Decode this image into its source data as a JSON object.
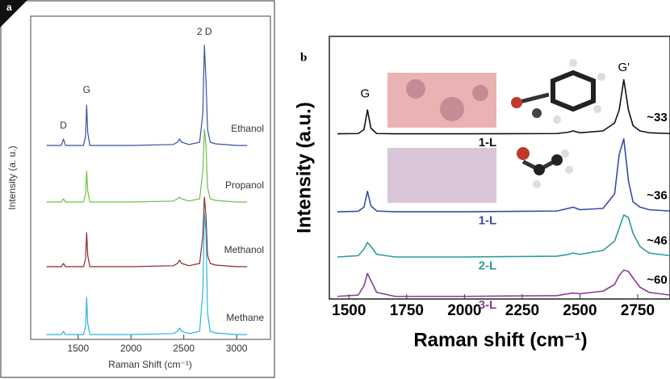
{
  "chart_data": [
    {
      "type": "line",
      "panel": "a",
      "x_label": "Raman Shift (cm⁻¹)",
      "y_label": "Intensity (a. u.)",
      "annotations": [
        "D",
        "G",
        "2 D"
      ],
      "xlim": [
        1050,
        3320
      ],
      "xticks": [
        1500,
        2000,
        2500,
        3000
      ],
      "ylim": [
        0,
        100
      ],
      "x": [
        1200,
        1340,
        1360,
        1380,
        1550,
        1570,
        1580,
        1590,
        1610,
        1700,
        2000,
        2400,
        2440,
        2460,
        2480,
        2550,
        2650,
        2680,
        2695,
        2710,
        2725,
        2750,
        2800,
        3000,
        3100
      ],
      "series": [
        {
          "name": "Ethanol",
          "color": "#3b4fa0",
          "values": [
            60,
            60,
            62,
            60,
            60,
            63,
            72.5,
            64,
            60,
            60,
            60,
            60.3,
            61,
            62,
            61,
            60.3,
            61,
            70,
            91,
            80,
            65,
            61,
            60.5,
            60,
            60
          ]
        },
        {
          "name": "Propanol",
          "color": "#6cc04a",
          "values": [
            42.5,
            42.5,
            43.5,
            42.5,
            42.5,
            45,
            52,
            46,
            42.5,
            42.5,
            42.5,
            42.8,
            43.5,
            44,
            43.5,
            42.8,
            43.5,
            52,
            65,
            60,
            47,
            43.5,
            43,
            42.5,
            42.5
          ]
        },
        {
          "name": "Methanol",
          "color": "#8b2a2a",
          "values": [
            22.5,
            22.5,
            23.5,
            22.5,
            22.5,
            25,
            33,
            26,
            22.5,
            22.5,
            22.5,
            22.8,
            23.5,
            24.5,
            23.5,
            22.8,
            23.5,
            32,
            44,
            38,
            26,
            23.5,
            23,
            22.5,
            22.5
          ]
        },
        {
          "name": "Methane",
          "color": "#29b5e0",
          "values": [
            1.5,
            1.5,
            2.5,
            1.5,
            1.5,
            4,
            13,
            5,
            1.5,
            1.5,
            1.5,
            1.8,
            2.5,
            3.5,
            2.5,
            1.8,
            2.5,
            15,
            39,
            33,
            8,
            2.5,
            2,
            1.5,
            1.5
          ]
        }
      ]
    },
    {
      "type": "line",
      "panel": "b",
      "x_label": "Raman shift (cm⁻¹)",
      "y_label": "Intensity (a.u.)",
      "annotations": [
        "G",
        "G'"
      ],
      "xlim": [
        1415,
        2890
      ],
      "xticks": [
        1500,
        1750,
        2000,
        2250,
        2500,
        2750
      ],
      "ylim": [
        0,
        100
      ],
      "x": [
        1450,
        1540,
        1565,
        1580,
        1595,
        1620,
        1700,
        2000,
        2400,
        2450,
        2470,
        2500,
        2600,
        2650,
        2670,
        2690,
        2710,
        2730,
        2760,
        2800,
        2890
      ],
      "series": [
        {
          "name": "1-L",
          "color": "#111111",
          "fwhm_label": "~33",
          "values": [
            62.9,
            63,
            64.5,
            72,
            65,
            63,
            62.9,
            62.9,
            63,
            63.5,
            64,
            63.3,
            64,
            67,
            72,
            83.5,
            72,
            66,
            64,
            63.3,
            63
          ]
        },
        {
          "name": "1-L",
          "color": "#3a4aa8",
          "fwhm_label": "~36",
          "values": [
            33.2,
            33.4,
            35,
            41,
            35.5,
            33.5,
            33.2,
            33.2,
            33.5,
            34.5,
            35,
            34,
            34.5,
            40,
            55,
            61,
            45,
            37,
            35,
            34,
            33.5
          ]
        },
        {
          "name": "2-L",
          "color": "#2a9b9b",
          "fwhm_label": "~46",
          "values": [
            16,
            16.5,
            19,
            21.5,
            20,
            17,
            16,
            16,
            16.3,
            17,
            17.5,
            17,
            18.5,
            22,
            27,
            32,
            31,
            25,
            20,
            17.5,
            16.5
          ]
        },
        {
          "name": "3-L",
          "color": "#8b3a9b",
          "fwhm_label": "~60",
          "values": [
            1,
            1.5,
            5,
            9.7,
            7,
            2.5,
            1,
            1,
            1.3,
            2,
            2.3,
            2,
            3,
            5.5,
            9,
            11,
            10.5,
            8,
            4.5,
            2.5,
            1.5
          ]
        }
      ]
    }
  ]
}
